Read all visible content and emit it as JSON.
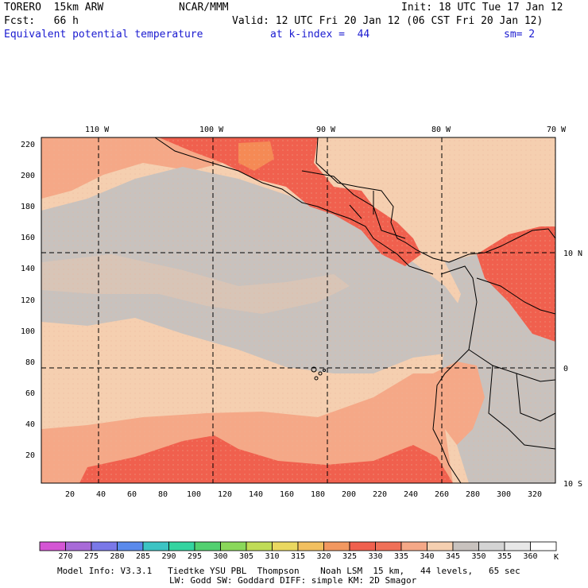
{
  "header": {
    "model": "TORERO  15km ARW",
    "org": "NCAR/MMM",
    "init": "Init: 18 UTC Tue 17 Jan 12",
    "fcst": "Fcst:   66 h",
    "valid": "Valid: 12 UTC Fri 20 Jan 12 (06 CST Fri 20 Jan 12)",
    "field": "Equivalent potential temperature",
    "level": "at k-index =  44",
    "smooth": "sm= 2"
  },
  "map": {
    "lon_labels": [
      "110 W",
      "100 W",
      "90 W",
      "80 W",
      "70 W"
    ],
    "lat_labels": [
      "10 N",
      "0",
      "10 S"
    ],
    "y_ticks": [
      "220",
      "200",
      "180",
      "160",
      "140",
      "120",
      "100",
      "80",
      "60",
      "40",
      "20"
    ],
    "x_ticks": [
      "20",
      "40",
      "60",
      "80",
      "100",
      "120",
      "140",
      "160",
      "180",
      "200",
      "220",
      "240",
      "260",
      "280",
      "300",
      "320"
    ],
    "colors": {
      "ocean_base": "#f5cfb0",
      "gray_band": "#c8c2be",
      "salmon": "#f5a887",
      "red": "#f0604e",
      "red_dark": "#e84a40",
      "orange_hot": "#f58a55",
      "land_line": "#000000"
    }
  },
  "colorbar": {
    "values": [
      "270",
      "275",
      "280",
      "285",
      "290",
      "295",
      "300",
      "305",
      "310",
      "315",
      "320",
      "325",
      "330",
      "335",
      "340",
      "345",
      "350",
      "355",
      "360"
    ],
    "unit": "K",
    "colors": [
      "#d455d4",
      "#a86ad8",
      "#7a78e8",
      "#5a8aec",
      "#3cc4c4",
      "#34d4a0",
      "#52d070",
      "#8ad85a",
      "#c0dc56",
      "#ead860",
      "#f2c060",
      "#f29860",
      "#f0604e",
      "#f07058",
      "#f5a887",
      "#f5cfb0",
      "#c8c2be",
      "#d4d4d4",
      "#e8e8e8",
      "#ffffff"
    ]
  },
  "footer": {
    "line1": "Model Info: V3.3.1   Tiedtke YSU PBL  Thompson    Noah LSM  15 km,   44 levels,   65 sec",
    "line2": "LW: Godd SW: Goddard DIFF: simple KM: 2D Smagor"
  }
}
